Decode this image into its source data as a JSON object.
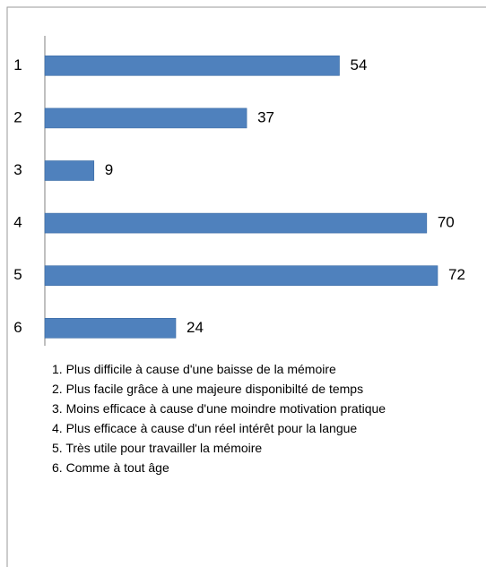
{
  "chart_data": {
    "type": "bar",
    "orientation": "horizontal",
    "categories": [
      "1",
      "2",
      "3",
      "4",
      "5",
      "6"
    ],
    "values": [
      54,
      37,
      9,
      70,
      72,
      24
    ],
    "color": "#4f81bd",
    "notes": [
      "1. Plus difficile à cause d'une baisse de la mémoire",
      "2. Plus facile grâce à une majeure disponibilté de temps",
      "3. Moins efficace à cause d'une moindre motivation pratique",
      "4. Plus efficace à cause d'un réel intérêt pour la langue",
      "5. Très utile pour travailler la mémoire",
      "6. Comme à tout âge"
    ]
  }
}
